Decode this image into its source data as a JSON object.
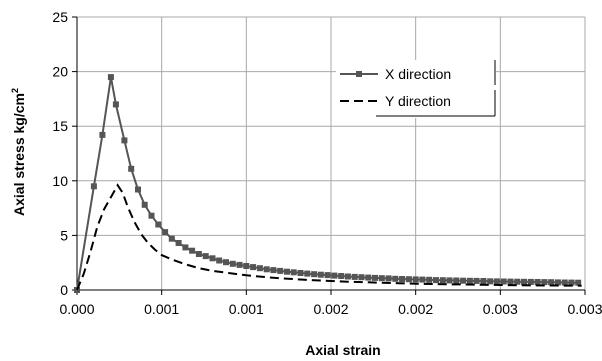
{
  "chart_data": {
    "type": "line",
    "title": "",
    "xlabel": "Axial strain",
    "ylabel": "Axial stress kg/cm",
    "ylabel_superscript": "2",
    "xlim": [
      0,
      0.003
    ],
    "ylim": [
      0,
      25
    ],
    "x_tick_labels": [
      "0.000",
      "0.001",
      "0.001",
      "0.002",
      "0.002",
      "0.003",
      "0.003"
    ],
    "y_tick_labels": [
      "0",
      "5",
      "10",
      "15",
      "20",
      "25"
    ],
    "grid": true,
    "legend_position": "upper-right",
    "series": [
      {
        "name": "X direction",
        "color": "#555555",
        "style": "solid-square-markers",
        "points": [
          [
            0.0,
            0.0
          ],
          [
            0.0001,
            9.5
          ],
          [
            0.00015,
            14.2
          ],
          [
            0.0002,
            19.5
          ],
          [
            0.00023,
            17.0
          ],
          [
            0.00028,
            13.7
          ],
          [
            0.00032,
            11.1
          ],
          [
            0.00036,
            9.2
          ],
          [
            0.0004,
            7.8
          ],
          [
            0.00044,
            6.8
          ],
          [
            0.00048,
            6.0
          ],
          [
            0.00052,
            5.3
          ],
          [
            0.00056,
            4.7
          ],
          [
            0.0006,
            4.3
          ],
          [
            0.00064,
            3.9
          ],
          [
            0.00068,
            3.6
          ],
          [
            0.00072,
            3.3
          ],
          [
            0.00076,
            3.1
          ],
          [
            0.0008,
            2.9
          ],
          [
            0.00084,
            2.7
          ],
          [
            0.00088,
            2.55
          ],
          [
            0.00092,
            2.4
          ],
          [
            0.00096,
            2.3
          ],
          [
            0.001,
            2.2
          ],
          [
            0.00104,
            2.1
          ],
          [
            0.00108,
            2.0
          ],
          [
            0.00112,
            1.9
          ],
          [
            0.00116,
            1.82
          ],
          [
            0.0012,
            1.75
          ],
          [
            0.00124,
            1.68
          ],
          [
            0.00128,
            1.62
          ],
          [
            0.00132,
            1.56
          ],
          [
            0.00136,
            1.5
          ],
          [
            0.0014,
            1.45
          ],
          [
            0.00144,
            1.4
          ],
          [
            0.00148,
            1.36
          ],
          [
            0.00152,
            1.32
          ],
          [
            0.00156,
            1.28
          ],
          [
            0.0016,
            1.24
          ],
          [
            0.00164,
            1.2
          ],
          [
            0.00168,
            1.17
          ],
          [
            0.00172,
            1.14
          ],
          [
            0.00176,
            1.11
          ],
          [
            0.0018,
            1.08
          ],
          [
            0.00184,
            1.06
          ],
          [
            0.00188,
            1.03
          ],
          [
            0.00192,
            1.01
          ],
          [
            0.00196,
            0.99
          ],
          [
            0.002,
            0.97
          ],
          [
            0.00204,
            0.95
          ],
          [
            0.00208,
            0.93
          ],
          [
            0.00212,
            0.91
          ],
          [
            0.00216,
            0.9
          ],
          [
            0.0022,
            0.88
          ],
          [
            0.00224,
            0.87
          ],
          [
            0.00228,
            0.85
          ],
          [
            0.00232,
            0.84
          ],
          [
            0.00236,
            0.83
          ],
          [
            0.0024,
            0.82
          ],
          [
            0.00244,
            0.8
          ],
          [
            0.00248,
            0.79
          ],
          [
            0.00252,
            0.78
          ],
          [
            0.00256,
            0.77
          ],
          [
            0.0026,
            0.76
          ],
          [
            0.00264,
            0.75
          ],
          [
            0.00268,
            0.74
          ],
          [
            0.00272,
            0.73
          ],
          [
            0.00276,
            0.72
          ],
          [
            0.0028,
            0.71
          ],
          [
            0.00284,
            0.7
          ],
          [
            0.00288,
            0.69
          ],
          [
            0.00292,
            0.68
          ],
          [
            0.00296,
            0.67
          ]
        ]
      },
      {
        "name": "Y direction",
        "color": "#000000",
        "style": "dashed",
        "points": [
          [
            0.0,
            0.0
          ],
          [
            4e-05,
            1.5
          ],
          [
            8e-05,
            3.5
          ],
          [
            0.00012,
            5.8
          ],
          [
            0.00016,
            7.4
          ],
          [
            0.0002,
            8.5
          ],
          [
            0.00024,
            9.6
          ],
          [
            0.00027,
            8.9
          ],
          [
            0.0003,
            7.6
          ],
          [
            0.00034,
            6.2
          ],
          [
            0.00038,
            5.1
          ],
          [
            0.00042,
            4.3
          ],
          [
            0.00046,
            3.7
          ],
          [
            0.0005,
            3.2
          ],
          [
            0.00056,
            2.8
          ],
          [
            0.00064,
            2.35
          ],
          [
            0.00072,
            2.0
          ],
          [
            0.0008,
            1.75
          ],
          [
            0.0009,
            1.55
          ],
          [
            0.001,
            1.35
          ],
          [
            0.0011,
            1.2
          ],
          [
            0.0012,
            1.07
          ],
          [
            0.0013,
            0.98
          ],
          [
            0.0014,
            0.9
          ],
          [
            0.0015,
            0.82
          ],
          [
            0.0016,
            0.76
          ],
          [
            0.0017,
            0.71
          ],
          [
            0.0018,
            0.66
          ],
          [
            0.0019,
            0.62
          ],
          [
            0.002,
            0.58
          ],
          [
            0.0021,
            0.55
          ],
          [
            0.0022,
            0.52
          ],
          [
            0.0023,
            0.5
          ],
          [
            0.0024,
            0.48
          ],
          [
            0.0025,
            0.46
          ],
          [
            0.0026,
            0.44
          ],
          [
            0.0027,
            0.42
          ],
          [
            0.0028,
            0.41
          ],
          [
            0.0029,
            0.4
          ],
          [
            0.00298,
            0.39
          ]
        ]
      }
    ]
  }
}
